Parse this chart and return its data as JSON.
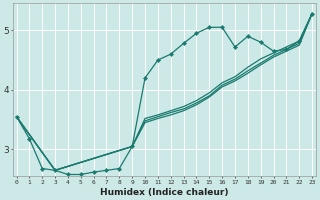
{
  "title": "",
  "xlabel": "Humidex (Indice chaleur)",
  "ylabel": "",
  "xlim": [
    -0.3,
    23.3
  ],
  "ylim": [
    2.55,
    5.45
  ],
  "yticks": [
    3,
    4,
    5
  ],
  "xticks": [
    0,
    1,
    2,
    3,
    4,
    5,
    6,
    7,
    8,
    9,
    10,
    11,
    12,
    13,
    14,
    15,
    16,
    17,
    18,
    19,
    20,
    21,
    22,
    23
  ],
  "bg_color": "#cce9e7",
  "grid_color": "#ffffff",
  "line_color": "#1a7a6e",
  "line1_x": [
    0,
    1,
    2,
    3,
    4,
    5,
    6,
    7,
    8,
    9,
    10,
    11,
    12,
    13,
    14,
    15,
    16,
    17,
    18,
    19,
    20,
    21,
    22,
    23
  ],
  "line1_y": [
    3.55,
    3.18,
    2.68,
    2.65,
    2.58,
    2.58,
    2.62,
    2.65,
    2.68,
    3.05,
    4.2,
    4.5,
    4.6,
    4.78,
    4.95,
    5.05,
    5.05,
    4.72,
    4.9,
    4.8,
    4.65,
    4.68,
    4.82,
    5.28
  ],
  "line2_x": [
    0,
    3,
    9,
    10,
    11,
    12,
    13,
    14,
    15,
    16,
    17,
    18,
    19,
    20,
    21,
    22,
    23
  ],
  "line2_y": [
    3.55,
    2.65,
    3.05,
    3.52,
    3.58,
    3.65,
    3.72,
    3.82,
    3.95,
    4.12,
    4.22,
    4.38,
    4.52,
    4.62,
    4.72,
    4.82,
    5.28
  ],
  "line3_x": [
    0,
    3,
    9,
    10,
    11,
    12,
    13,
    14,
    15,
    16,
    17,
    18,
    19,
    20,
    21,
    22,
    23
  ],
  "line3_y": [
    3.55,
    2.65,
    3.05,
    3.48,
    3.55,
    3.62,
    3.68,
    3.78,
    3.9,
    4.08,
    4.18,
    4.32,
    4.45,
    4.58,
    4.68,
    4.78,
    5.28
  ],
  "line4_x": [
    0,
    3,
    9,
    10,
    11,
    12,
    13,
    14,
    15,
    16,
    17,
    18,
    19,
    20,
    21,
    22,
    23
  ],
  "line4_y": [
    3.55,
    2.65,
    3.05,
    3.45,
    3.52,
    3.58,
    3.65,
    3.75,
    3.88,
    4.05,
    4.15,
    4.28,
    4.42,
    4.55,
    4.65,
    4.75,
    5.28
  ]
}
